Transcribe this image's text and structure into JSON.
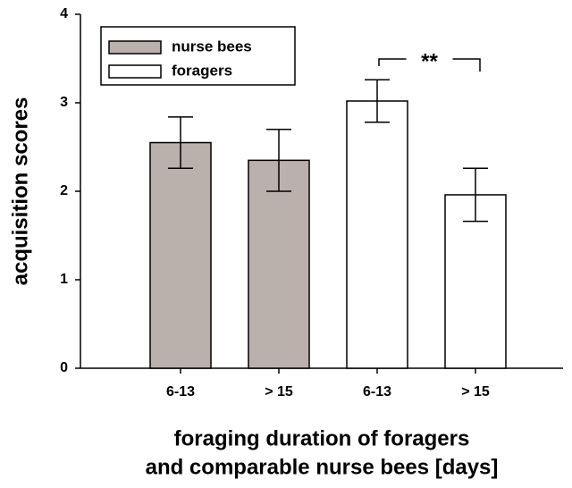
{
  "chart_data": {
    "type": "bar",
    "ylabel": "acquisition scores",
    "xlabel": [
      "foraging duration of foragers",
      "and comparable nurse bees [days]"
    ],
    "categories": [
      "6-13",
      "> 15",
      "6-13",
      "> 15"
    ],
    "series": [
      {
        "name": "nurse bees",
        "color": "#bab0ac",
        "values": [
          2.55,
          2.35,
          null,
          null
        ],
        "errors": [
          0.29,
          0.35,
          null,
          null
        ]
      },
      {
        "name": "foragers",
        "color": "#ffffff",
        "values": [
          null,
          null,
          3.02,
          1.96
        ],
        "errors": [
          null,
          null,
          0.24,
          0.3
        ]
      }
    ],
    "annotation": "**",
    "ylim": [
      0,
      4
    ],
    "yticks": [
      0,
      1,
      2,
      3,
      4
    ],
    "legend": "upper left"
  }
}
